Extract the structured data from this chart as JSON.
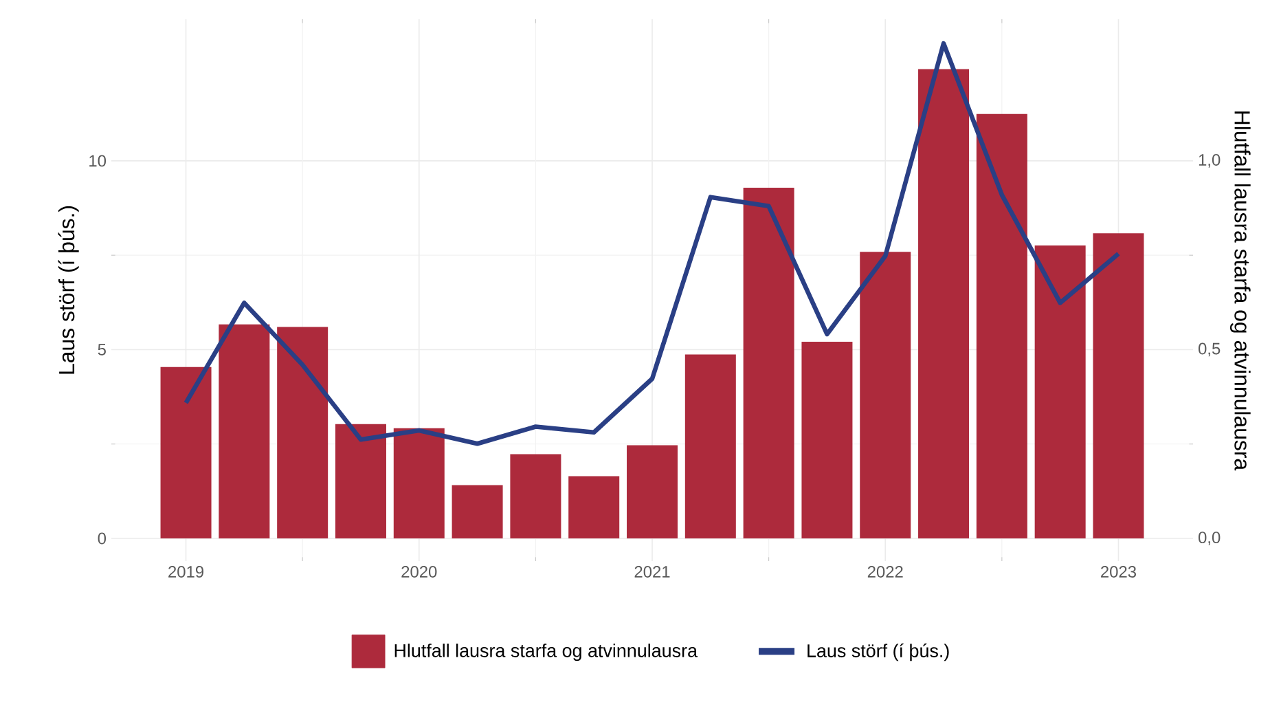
{
  "chart_data": {
    "type": "bar",
    "ylabel": "Laus störf (í þús.)",
    "y2label": "Hlutfall lausra starfa og atvinnulausra",
    "x": [
      2019,
      2019.25,
      2019.5,
      2019.75,
      2020,
      2020.25,
      2020.5,
      2020.75,
      2021,
      2021.25,
      2021.5,
      2021.75,
      2022,
      2022.25,
      2022.5,
      2022.75,
      2023
    ],
    "xlim": [
      2018.68,
      2023.32
    ],
    "xticks": [
      2019,
      2020,
      2021,
      2022,
      2023
    ],
    "ylim": [
      -0.6,
      13.75
    ],
    "yticks": [
      0,
      5,
      10
    ],
    "y2lim": [
      -0.06,
      1.375
    ],
    "y2ticks": [
      {
        "value": 0,
        "label": "0,0"
      },
      {
        "value": 0.5,
        "label": "0,5"
      },
      {
        "value": 1.0,
        "label": "1,0"
      }
    ],
    "series": [
      {
        "name": "Hlutfall lausra starfa og atvinnulausra",
        "axis": "y2",
        "color": "#ad2a3c",
        "values": [
          0.454,
          0.567,
          0.56,
          0.303,
          0.292,
          0.141,
          0.223,
          0.165,
          0.247,
          0.487,
          0.929,
          0.521,
          0.759,
          1.243,
          1.124,
          0.776,
          0.808
        ]
      },
      {
        "name": "Laus störf (í þús.)",
        "type": "line",
        "axis": "y",
        "color": "#2a3f85",
        "values": [
          3.59,
          6.24,
          4.6,
          2.62,
          2.86,
          2.51,
          2.96,
          2.81,
          4.23,
          9.04,
          8.8,
          5.41,
          7.48,
          13.11,
          9.1,
          6.24,
          7.54
        ]
      }
    ],
    "grid": true,
    "legend": "bottom"
  }
}
